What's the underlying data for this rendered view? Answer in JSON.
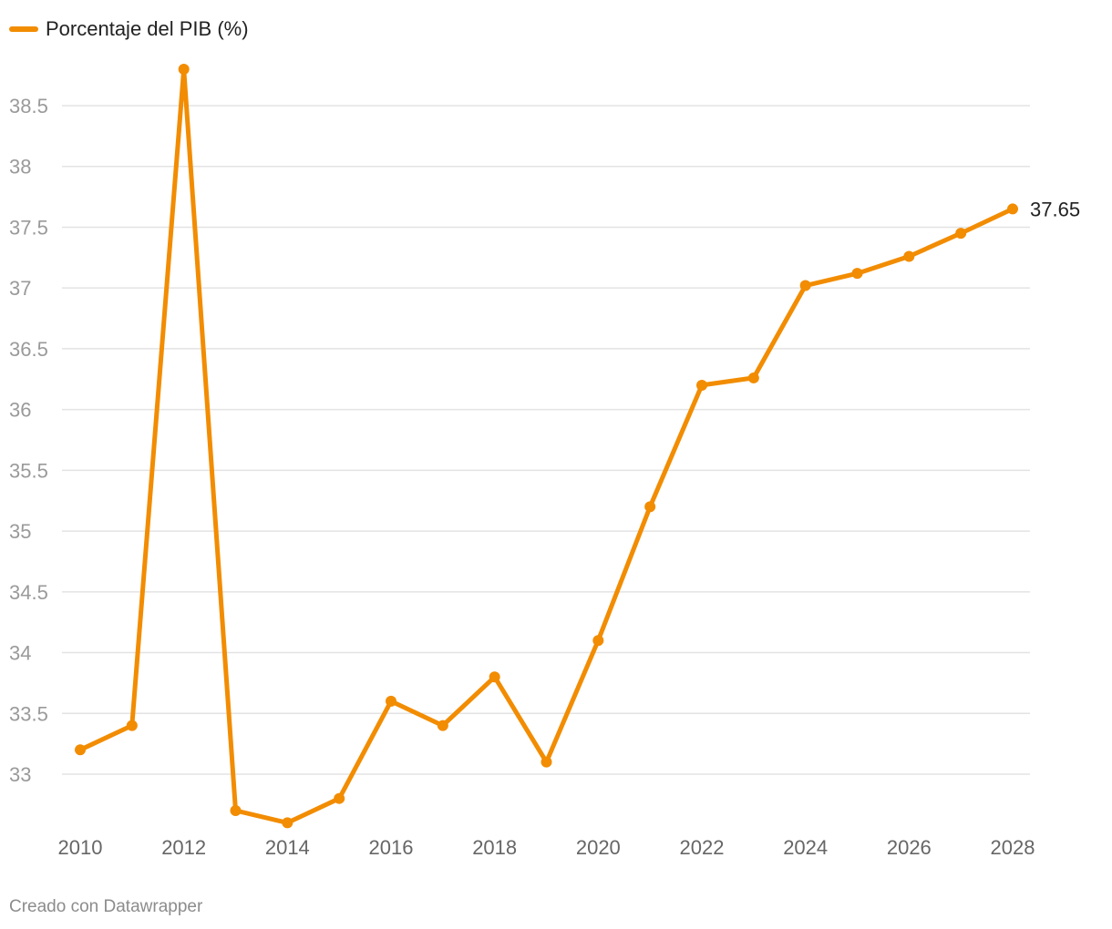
{
  "legend": {
    "label": "Porcentaje del PIB (%)"
  },
  "credit": "Creado con Datawrapper",
  "colors": {
    "series": "#f28c00",
    "grid": "#e3e3e3",
    "tick_text": "#9a9a9a"
  },
  "chart_data": {
    "type": "line",
    "title": "",
    "xlabel": "",
    "ylabel": "",
    "x": [
      2010,
      2011,
      2012,
      2013,
      2014,
      2015,
      2016,
      2017,
      2018,
      2019,
      2020,
      2021,
      2022,
      2023,
      2024,
      2025,
      2026,
      2027,
      2028
    ],
    "series": [
      {
        "name": "Porcentaje del PIB (%)",
        "values": [
          33.2,
          33.4,
          38.8,
          32.7,
          32.6,
          32.8,
          33.6,
          33.4,
          33.8,
          33.1,
          34.1,
          35.2,
          36.2,
          36.26,
          37.02,
          37.12,
          37.26,
          37.45,
          37.65
        ]
      }
    ],
    "xticks": [
      "2010",
      "2012",
      "2014",
      "2016",
      "2018",
      "2020",
      "2022",
      "2024",
      "2026",
      "2028"
    ],
    "yticks": [
      "33",
      "33.5",
      "34",
      "34.5",
      "35",
      "35.5",
      "36",
      "36.5",
      "37",
      "37.5",
      "38",
      "38.5"
    ],
    "xlim": [
      2010,
      2028
    ],
    "ylim": [
      32.6,
      38.8
    ],
    "end_label": "37.65",
    "grid": true,
    "legend_position": "top-left"
  }
}
